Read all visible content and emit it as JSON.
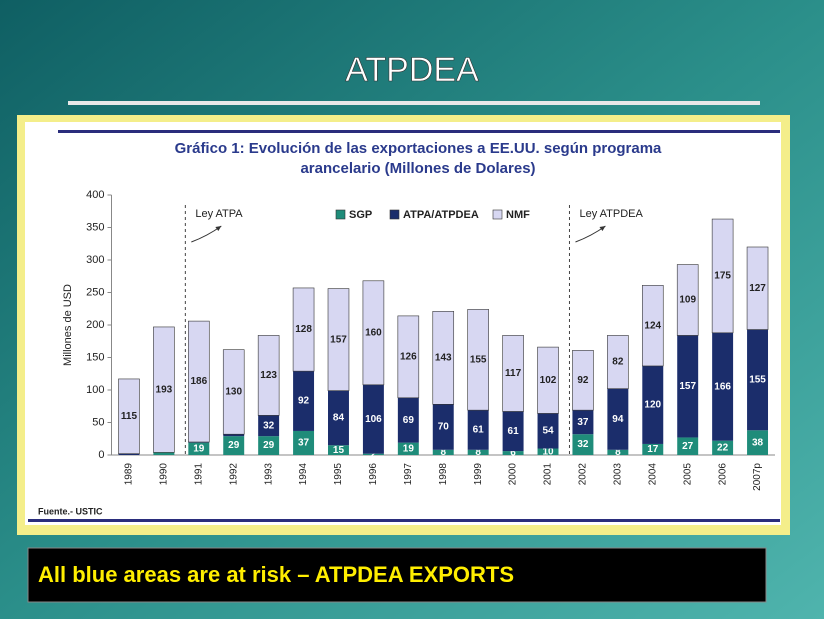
{
  "slide": {
    "title": "ATPDEA",
    "caption": "All blue areas are at risk – ATPDEA EXPORTS"
  },
  "chart_data": {
    "type": "stacked_bar",
    "title": [
      "Gráfico 1: Evolución de las exportaciones a EE.UU. según programa",
      "arancelario (Millones de Dolares)"
    ],
    "y_label": "Millones de USD",
    "source": "Fuente.- USTIC",
    "legend": "top",
    "categories": [
      "1989",
      "1990",
      "1991",
      "1992",
      "1993",
      "1994",
      "1995",
      "1996",
      "1997",
      "1998",
      "1999",
      "2000",
      "2001",
      "2002",
      "2003",
      "2004",
      "2005",
      "2006",
      "2007p"
    ],
    "series": [
      {
        "name": "SGP",
        "color": "#1f8c7a",
        "label_color": "#ffffff",
        "values": [
          0,
          4,
          19,
          29,
          29,
          37,
          15,
          2,
          19,
          8,
          8,
          6,
          10,
          32,
          8,
          17,
          27,
          22,
          38
        ],
        "value_labels": [
          null,
          null,
          "19",
          "29",
          "29",
          "37",
          "15",
          "2",
          "19",
          "8",
          "8",
          "6",
          "10",
          "32",
          "8",
          "17",
          "27",
          "22",
          "38"
        ]
      },
      {
        "name": "ATPA/ATPDEA",
        "color": "#1b2d6b",
        "label_color": "#ffffff",
        "values": [
          2,
          0,
          1,
          3,
          32,
          92,
          84,
          106,
          69,
          70,
          61,
          61,
          54,
          37,
          94,
          120,
          157,
          166,
          155
        ],
        "value_labels": [
          null,
          null,
          null,
          null,
          "32",
          "92",
          "84",
          "106",
          "69",
          "70",
          "61",
          "61",
          "54",
          "37",
          "94",
          "120",
          "157",
          "166",
          "155"
        ]
      },
      {
        "name": "NMF",
        "color": "#d7d7f2",
        "label_color": "#222222",
        "values": [
          115,
          193,
          186,
          130,
          123,
          128,
          157,
          160,
          126,
          143,
          155,
          117,
          102,
          92,
          82,
          124,
          109,
          175,
          127
        ],
        "value_labels": [
          "115",
          "193",
          "186",
          "130",
          "123",
          "128",
          "157",
          "160",
          "126",
          "143",
          "155",
          "117",
          "102",
          "92",
          "82",
          "124",
          "109",
          "175",
          "127"
        ]
      }
    ],
    "annotations": [
      {
        "text": "Ley ATPA",
        "category": "1991"
      },
      {
        "text": "Ley ATPDEA",
        "category": "2002"
      }
    ],
    "ylim": [
      0,
      400
    ],
    "yticks": [
      0,
      50,
      100,
      150,
      200,
      250,
      300,
      350,
      400
    ],
    "grid": false
  }
}
